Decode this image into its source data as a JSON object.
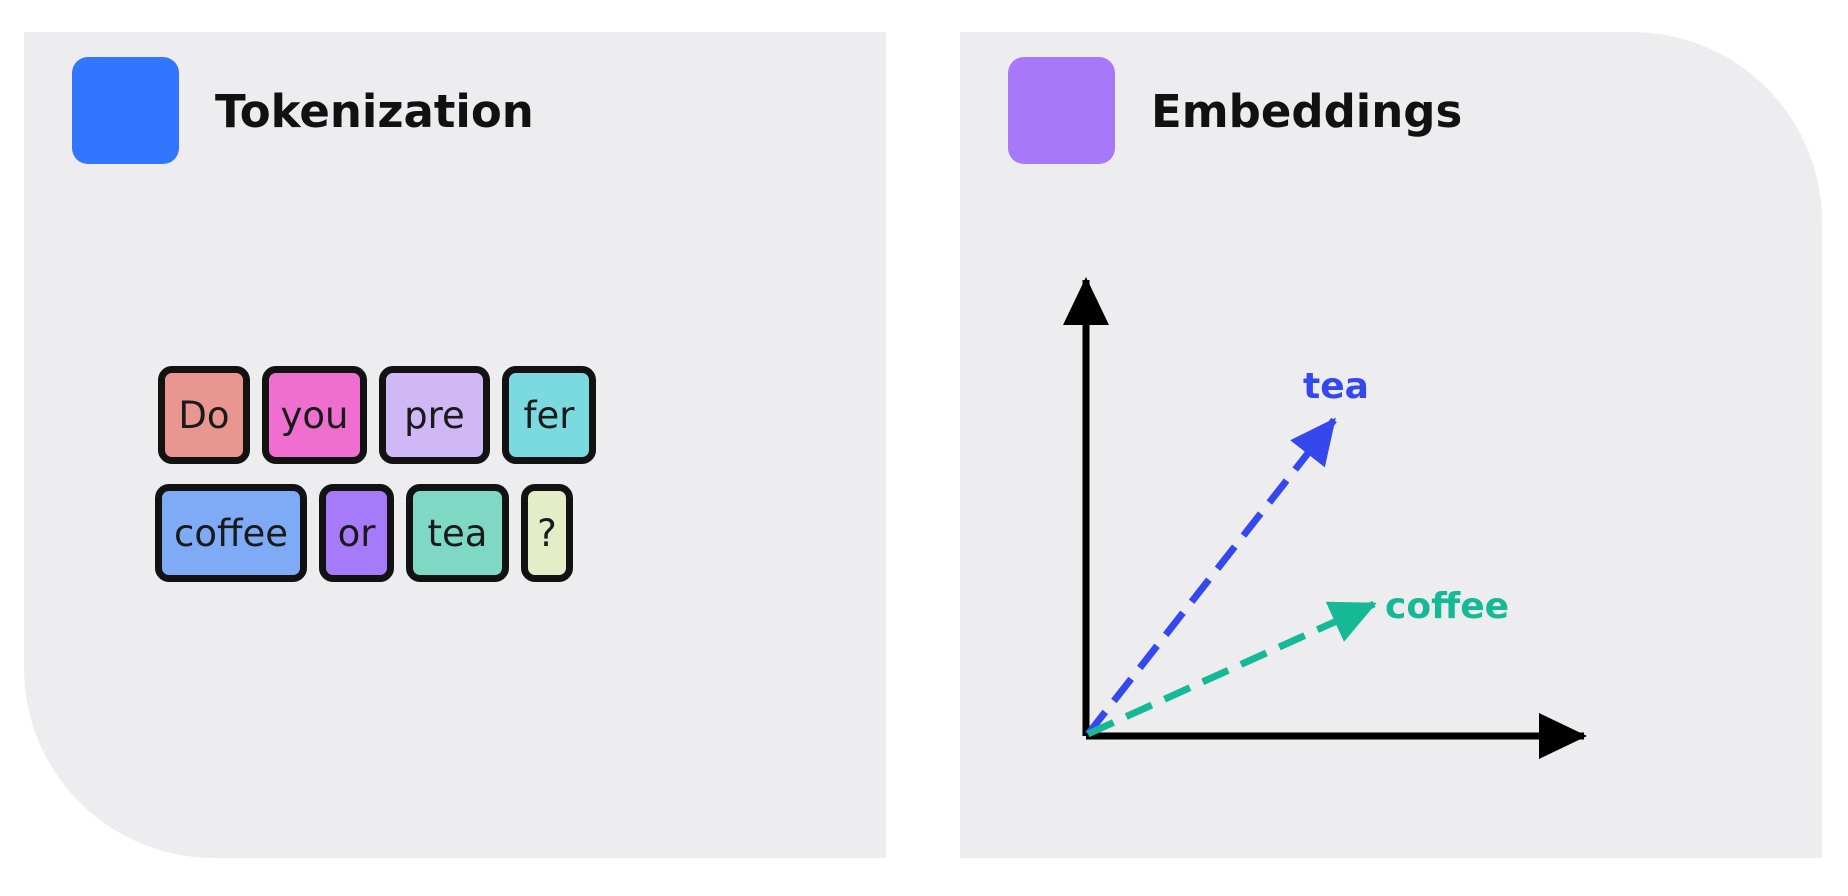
{
  "tokenization": {
    "title": "Tokenization",
    "badge_color": "#3276ff",
    "rows": [
      [
        {
          "text": "Do",
          "color": "#ea9690"
        },
        {
          "text": "you",
          "color": "#ef6fd0"
        },
        {
          "text": "pre",
          "color": "#d0b8f7"
        },
        {
          "text": "fer",
          "color": "#7bd9e0"
        }
      ],
      [
        {
          "text": "coffee",
          "color": "#7eaaf6"
        },
        {
          "text": "or",
          "color": "#a77af9"
        },
        {
          "text": "tea",
          "color": "#7fd8c4"
        },
        {
          "text": "?",
          "color": "#e3edc8"
        }
      ]
    ]
  },
  "embeddings": {
    "title": "Embeddings",
    "badge_color": "#a878fb",
    "vectors": [
      {
        "label": "tea",
        "color": "#3548ee"
      },
      {
        "label": "coffee",
        "color": "#15b996"
      }
    ]
  }
}
